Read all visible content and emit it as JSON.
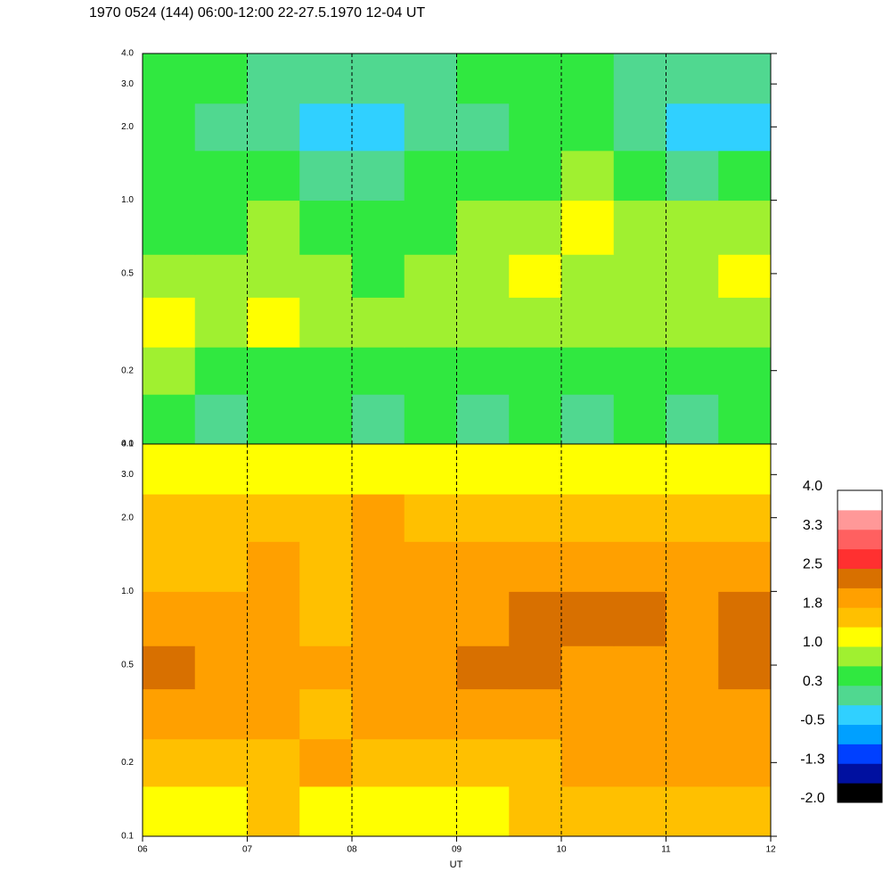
{
  "chart_data": {
    "type": "heatmap",
    "title": "1970 0524 (144) 06:00-12:00 22-27.5.1970  12-04 UT",
    "xlabel": "UT",
    "xlim": [
      6,
      12
    ],
    "xticks": [
      {
        "value": 6,
        "label": "06"
      },
      {
        "value": 7,
        "label": "07"
      },
      {
        "value": 8,
        "label": "08"
      },
      {
        "value": 9,
        "label": "09"
      },
      {
        "value": 10,
        "label": "10"
      },
      {
        "value": 11,
        "label": "11"
      },
      {
        "value": 12,
        "label": "12"
      }
    ],
    "ylim": [
      0.1,
      4
    ],
    "yscale": "log",
    "yticks": [
      0.1,
      0.2,
      0.5,
      {
        "value": 1,
        "label": "1.0"
      },
      {
        "value": 2,
        "label": "2.0"
      },
      {
        "value": 3,
        "label": "3.0"
      },
      {
        "value": 4,
        "label": "4.0"
      }
    ],
    "grid": true,
    "xbins": [
      6,
      6.5,
      7,
      7.5,
      8,
      8.5,
      9,
      9.5,
      10,
      10.5,
      11,
      11.5,
      12
    ],
    "ybins": [
      0.1,
      0.16,
      0.25,
      0.4,
      0.6,
      1,
      1.6,
      2.5,
      4
    ],
    "panels": [
      {
        "z": [
          [
            0.3,
            0.2,
            0.4,
            0.3,
            0.2,
            0.3,
            0.1,
            0.3,
            0.2,
            0.3,
            0.2,
            0.3
          ],
          [
            0.7,
            0.6,
            0.5,
            0.5,
            0.4,
            0.5,
            0.4,
            0.5,
            0.5,
            0.4,
            0.5,
            0.6
          ],
          [
            1.1,
            0.9,
            1.0,
            0.8,
            0.7,
            0.8,
            0.7,
            0.8,
            0.8,
            0.7,
            0.8,
            0.9
          ],
          [
            0.9,
            0.8,
            0.9,
            0.7,
            0.6,
            0.8,
            0.9,
            1.0,
            0.9,
            0.8,
            0.9,
            1.0
          ],
          [
            0.6,
            0.6,
            0.7,
            0.5,
            0.3,
            0.6,
            0.7,
            0.9,
            1.0,
            0.8,
            0.8,
            0.9
          ],
          [
            0.5,
            0.4,
            0.5,
            0.2,
            0.0,
            0.3,
            0.5,
            0.6,
            0.8,
            0.6,
            0.2,
            0.4
          ],
          [
            0.3,
            0.2,
            0.1,
            -0.2,
            -0.4,
            0.0,
            0.2,
            0.3,
            0.3,
            0.1,
            -0.4,
            -0.2
          ],
          [
            0.4,
            0.3,
            0.2,
            0.1,
            0.0,
            0.2,
            0.3,
            0.3,
            0.3,
            0.2,
            0.0,
            0.1
          ]
        ]
      },
      {
        "z": [
          [
            1.2,
            1.3,
            1.4,
            1.3,
            1.2,
            1.3,
            1.3,
            1.4,
            1.4,
            1.5,
            1.6,
            1.7
          ],
          [
            1.5,
            1.7,
            1.6,
            1.8,
            1.5,
            1.6,
            1.7,
            1.7,
            1.8,
            1.8,
            1.9,
            1.9
          ],
          [
            1.8,
            1.9,
            1.8,
            1.7,
            1.9,
            1.8,
            2.0,
            1.9,
            1.9,
            2.0,
            2.0,
            2.0
          ],
          [
            2.2,
            1.9,
            1.8,
            1.8,
            2.0,
            2.1,
            2.2,
            2.2,
            1.9,
            1.9,
            2.0,
            2.2
          ],
          [
            1.9,
            1.8,
            1.8,
            1.7,
            1.9,
            1.9,
            2.0,
            2.2,
            2.3,
            2.3,
            2.0,
            2.2
          ],
          [
            1.7,
            1.7,
            1.8,
            1.7,
            1.9,
            1.9,
            1.9,
            1.9,
            1.9,
            1.9,
            1.8,
            1.8
          ],
          [
            1.6,
            1.6,
            1.5,
            1.6,
            1.8,
            1.7,
            1.7,
            1.6,
            1.6,
            1.6,
            1.5,
            1.5
          ],
          [
            1.1,
            1.2,
            1.1,
            1.0,
            1.2,
            1.2,
            1.1,
            1.1,
            1.0,
            1.0,
            1.0,
            1.1
          ]
        ]
      }
    ],
    "colorscale": {
      "range": [
        -2,
        4
      ],
      "colors": [
        "#000000",
        "#0010a0",
        "#0040ff",
        "#00a0ff",
        "#30d0ff",
        "#50d890",
        "#30e840",
        "#a0f030",
        "#ffff00",
        "#ffc000",
        "#ffa000",
        "#d87000",
        "#ff3030",
        "#ff6060",
        "#ff9898",
        "#ffffff"
      ],
      "ticks": [
        {
          "value": 4,
          "label": "4.0"
        },
        {
          "value": 3.25,
          "label": "3.3"
        },
        2.5,
        {
          "value": 1.75,
          "label": "1.8"
        },
        {
          "value": 1,
          "label": "1.0"
        },
        {
          "value": 0.25,
          "label": "0.3"
        },
        -0.5,
        {
          "value": -1.25,
          "label": "-1.3"
        },
        {
          "value": -2,
          "label": "-2.0"
        }
      ]
    }
  }
}
